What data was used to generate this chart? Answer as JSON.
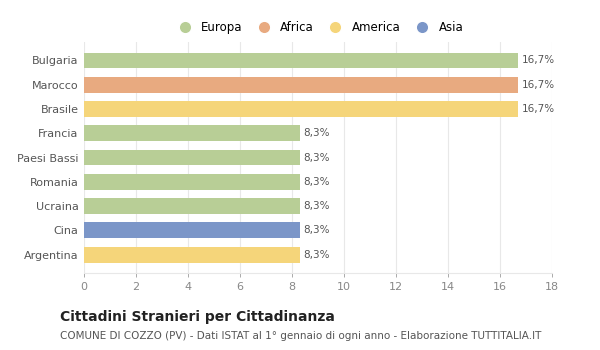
{
  "categories": [
    "Argentina",
    "Cina",
    "Ucraina",
    "Romania",
    "Paesi Bassi",
    "Francia",
    "Brasile",
    "Marocco",
    "Bulgaria"
  ],
  "values": [
    8.3,
    8.3,
    8.3,
    8.3,
    8.3,
    8.3,
    16.7,
    16.7,
    16.7
  ],
  "colors": [
    "#f5d57a",
    "#7b96c8",
    "#b8ce96",
    "#b8ce96",
    "#b8ce96",
    "#b8ce96",
    "#f5d57a",
    "#e8aa80",
    "#b8ce96"
  ],
  "labels": [
    "8,3%",
    "8,3%",
    "8,3%",
    "8,3%",
    "8,3%",
    "8,3%",
    "16,7%",
    "16,7%",
    "16,7%"
  ],
  "legend": [
    {
      "label": "Europa",
      "color": "#b8ce96"
    },
    {
      "label": "Africa",
      "color": "#e8aa80"
    },
    {
      "label": "America",
      "color": "#f5d57a"
    },
    {
      "label": "Asia",
      "color": "#7b96c8"
    }
  ],
  "xlim": [
    0,
    18
  ],
  "xticks": [
    0,
    2,
    4,
    6,
    8,
    10,
    12,
    14,
    16,
    18
  ],
  "title": "Cittadini Stranieri per Cittadinanza",
  "subtitle": "COMUNE DI COZZO (PV) - Dati ISTAT al 1° gennaio di ogni anno - Elaborazione TUTTITALIA.IT",
  "background_color": "#ffffff",
  "bar_edge_color": "none",
  "grid_color": "#e8e8e8",
  "label_fontsize": 7.5,
  "title_fontsize": 10,
  "subtitle_fontsize": 7.5,
  "ytick_fontsize": 8,
  "xtick_fontsize": 8
}
